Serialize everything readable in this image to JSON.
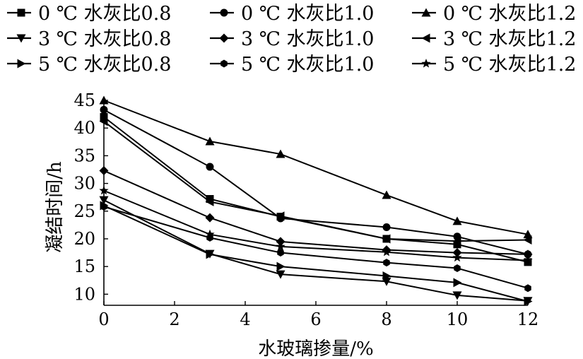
{
  "chart_data": {
    "type": "line",
    "title": "",
    "xlabel": "水玻璃掺量/%",
    "ylabel": "凝结时间/h",
    "xlim": [
      0,
      12
    ],
    "ylim": [
      8,
      45
    ],
    "xticks": [
      0,
      2,
      4,
      6,
      8,
      10,
      12
    ],
    "yticks": [
      10,
      15,
      20,
      25,
      30,
      35,
      40,
      45
    ],
    "x": [
      0,
      3,
      5,
      8,
      10,
      12
    ],
    "grid": false,
    "legend_position": "top",
    "series": [
      {
        "name": "0 ℃ 水灰比0.8",
        "marker": "square",
        "values": [
          42.0,
          27.2,
          24.0,
          20.0,
          19.0,
          15.8
        ]
      },
      {
        "name": "0 ℃ 水灰比1.0",
        "marker": "circle",
        "values": [
          43.3,
          33.0,
          23.7,
          22.1,
          20.4,
          17.2
        ]
      },
      {
        "name": "0 ℃ 水灰比1.2",
        "marker": "triangle-up",
        "values": [
          45.0,
          37.6,
          35.3,
          27.9,
          23.2,
          20.8
        ]
      },
      {
        "name": "3 ℃ 水灰比0.8",
        "marker": "triangle-down",
        "values": [
          27.0,
          17.3,
          13.6,
          12.3,
          9.8,
          8.8
        ]
      },
      {
        "name": "3 ℃ 水灰比1.0",
        "marker": "diamond",
        "values": [
          32.3,
          23.8,
          19.5,
          18.0,
          17.5,
          17.2
        ]
      },
      {
        "name": "3 ℃ 水灰比1.2",
        "marker": "triangle-left",
        "values": [
          41.2,
          26.7,
          24.1,
          20.0,
          19.6,
          19.8
        ]
      },
      {
        "name": "5 ℃ 水灰比0.8",
        "marker": "triangle-right",
        "values": [
          26.0,
          17.2,
          15.0,
          13.3,
          12.1,
          8.7
        ]
      },
      {
        "name": "5 ℃ 水灰比1.0",
        "marker": "hexagon",
        "values": [
          25.8,
          20.2,
          17.5,
          15.7,
          14.7,
          11.1
        ]
      },
      {
        "name": "5 ℃ 水灰比1.2",
        "marker": "star",
        "values": [
          28.7,
          20.8,
          18.6,
          17.6,
          16.6,
          16.1
        ]
      }
    ]
  }
}
